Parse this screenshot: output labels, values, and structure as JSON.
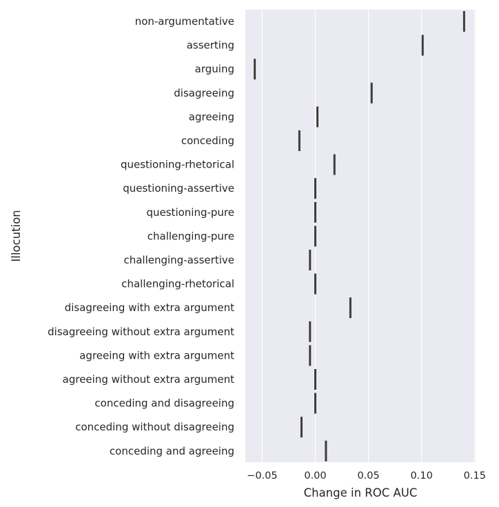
{
  "chart_data": {
    "type": "box",
    "orientation": "horizontal",
    "title": "",
    "xlabel": "Change in ROC AUC",
    "ylabel": "Illocution",
    "xlim": [
      -0.065,
      0.15
    ],
    "xticks": [
      -0.05,
      0.0,
      0.05,
      0.1,
      0.15
    ],
    "xtick_labels": [
      "−0.05",
      "0.00",
      "0.05",
      "0.10",
      "0.15"
    ],
    "grid": true,
    "legend": "none",
    "categories": [
      "non-argumentative",
      "asserting",
      "arguing",
      "disagreeing",
      "agreeing",
      "conceding",
      "questioning-rhetorical",
      "questioning-assertive",
      "questioning-pure",
      "challenging-pure",
      "challenging-assertive",
      "challenging-rhetorical",
      "disagreeing with extra argument",
      "disagreeing without extra argument",
      "agreeing with extra argument",
      "agreeing without extra argument",
      "conceding and disagreeing",
      "conceding without disagreeing",
      "conceding and agreeing"
    ],
    "values": [
      0.14,
      0.101,
      -0.057,
      0.053,
      0.002,
      -0.015,
      0.018,
      0.0,
      0.0,
      0.0,
      -0.005,
      0.0,
      0.033,
      -0.005,
      -0.005,
      0.0,
      0.0,
      -0.013,
      0.01
    ]
  },
  "colors": {
    "plot_background": "#eaeaf2",
    "grid": "#ffffff",
    "marker": "#3d3d3d",
    "text": "#262626"
  }
}
